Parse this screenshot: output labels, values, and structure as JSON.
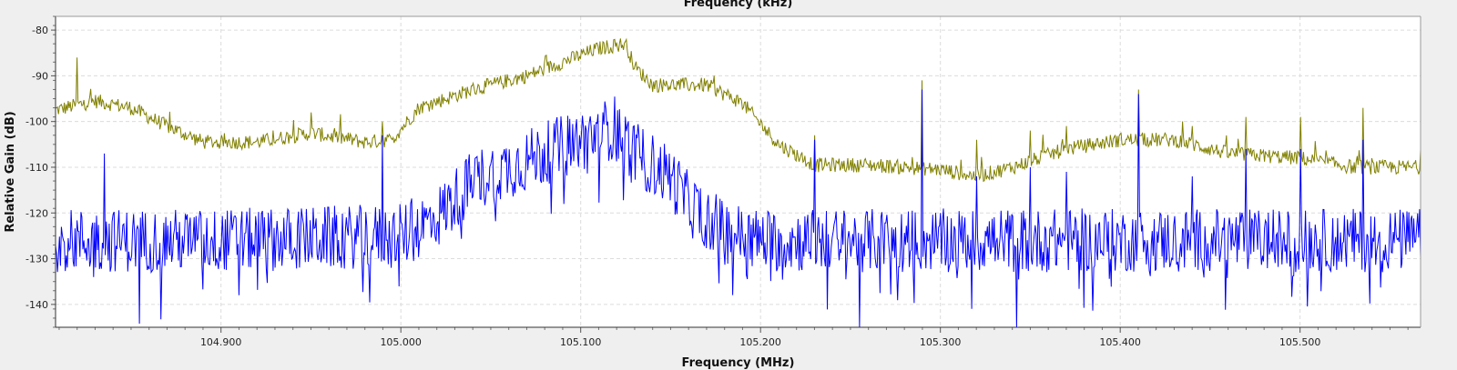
{
  "chart_data": {
    "type": "line",
    "top_axis_label": "Frequency (kHz)",
    "xlabel": "Frequency (MHz)",
    "ylabel": "Relative Gain (dB)",
    "xlim": [
      104.808,
      105.567
    ],
    "ylim": [
      -145,
      -77
    ],
    "x_ticks": [
      104.9,
      105.0,
      105.1,
      105.2,
      105.3,
      105.4,
      105.5
    ],
    "x_tick_labels": [
      "104.900",
      "105.000",
      "105.100",
      "105.200",
      "105.300",
      "105.400",
      "105.500"
    ],
    "y_ticks": [
      -80,
      -90,
      -100,
      -110,
      -120,
      -130,
      -140
    ],
    "y_tick_labels": [
      "-80",
      "-90",
      "-100",
      "-110",
      "-120",
      "-130",
      "-140"
    ],
    "grid": true,
    "series": [
      {
        "color": "#808000",
        "style": "noisy",
        "noise_amplitude": 1.6,
        "points": [
          {
            "x": 104.808,
            "y": -97.5
          },
          {
            "x": 104.83,
            "y": -95.5
          },
          {
            "x": 104.85,
            "y": -97
          },
          {
            "x": 104.87,
            "y": -101
          },
          {
            "x": 104.89,
            "y": -104.5
          },
          {
            "x": 104.92,
            "y": -104.5
          },
          {
            "x": 104.95,
            "y": -102.5
          },
          {
            "x": 104.98,
            "y": -104.5
          },
          {
            "x": 104.995,
            "y": -104
          },
          {
            "x": 105.01,
            "y": -97
          },
          {
            "x": 105.04,
            "y": -93
          },
          {
            "x": 105.07,
            "y": -90
          },
          {
            "x": 105.09,
            "y": -87
          },
          {
            "x": 105.11,
            "y": -84
          },
          {
            "x": 105.125,
            "y": -83
          },
          {
            "x": 105.13,
            "y": -88
          },
          {
            "x": 105.14,
            "y": -92
          },
          {
            "x": 105.17,
            "y": -92
          },
          {
            "x": 105.19,
            "y": -96
          },
          {
            "x": 105.21,
            "y": -105
          },
          {
            "x": 105.23,
            "y": -109.5
          },
          {
            "x": 105.26,
            "y": -109.5
          },
          {
            "x": 105.3,
            "y": -110.5
          },
          {
            "x": 105.32,
            "y": -112
          },
          {
            "x": 105.34,
            "y": -110
          },
          {
            "x": 105.37,
            "y": -106
          },
          {
            "x": 105.4,
            "y": -104
          },
          {
            "x": 105.43,
            "y": -104
          },
          {
            "x": 105.46,
            "y": -107
          },
          {
            "x": 105.5,
            "y": -108
          },
          {
            "x": 105.53,
            "y": -110
          },
          {
            "x": 105.567,
            "y": -110
          }
        ],
        "spikes": [
          {
            "x": 104.82,
            "y": -86
          },
          {
            "x": 104.95,
            "y": -98
          },
          {
            "x": 104.99,
            "y": -100
          },
          {
            "x": 105.23,
            "y": -103
          },
          {
            "x": 105.29,
            "y": -91
          },
          {
            "x": 105.32,
            "y": -104
          },
          {
            "x": 105.35,
            "y": -102
          },
          {
            "x": 105.37,
            "y": -101
          },
          {
            "x": 105.41,
            "y": -93
          },
          {
            "x": 105.44,
            "y": -101
          },
          {
            "x": 105.47,
            "y": -99
          },
          {
            "x": 105.5,
            "y": -99
          },
          {
            "x": 105.535,
            "y": -97
          }
        ]
      },
      {
        "color": "#0000ff",
        "style": "noisy",
        "noise_amplitude": 7,
        "points": [
          {
            "x": 104.808,
            "y": -126
          },
          {
            "x": 104.9,
            "y": -126
          },
          {
            "x": 105.0,
            "y": -125
          },
          {
            "x": 105.02,
            "y": -121
          },
          {
            "x": 105.04,
            "y": -113
          },
          {
            "x": 105.06,
            "y": -110
          },
          {
            "x": 105.08,
            "y": -107
          },
          {
            "x": 105.1,
            "y": -104
          },
          {
            "x": 105.12,
            "y": -101
          },
          {
            "x": 105.13,
            "y": -107
          },
          {
            "x": 105.15,
            "y": -112
          },
          {
            "x": 105.16,
            "y": -118
          },
          {
            "x": 105.18,
            "y": -124
          },
          {
            "x": 105.2,
            "y": -126
          },
          {
            "x": 105.3,
            "y": -126
          },
          {
            "x": 105.567,
            "y": -126
          }
        ],
        "spikes": [
          {
            "x": 104.835,
            "y": -107
          },
          {
            "x": 104.99,
            "y": -103
          },
          {
            "x": 105.23,
            "y": -104
          },
          {
            "x": 105.29,
            "y": -93
          },
          {
            "x": 105.32,
            "y": -112
          },
          {
            "x": 105.35,
            "y": -110
          },
          {
            "x": 105.37,
            "y": -111
          },
          {
            "x": 105.41,
            "y": -94
          },
          {
            "x": 105.44,
            "y": -112
          },
          {
            "x": 105.47,
            "y": -106
          },
          {
            "x": 105.5,
            "y": -106
          },
          {
            "x": 105.535,
            "y": -104
          }
        ]
      }
    ]
  }
}
